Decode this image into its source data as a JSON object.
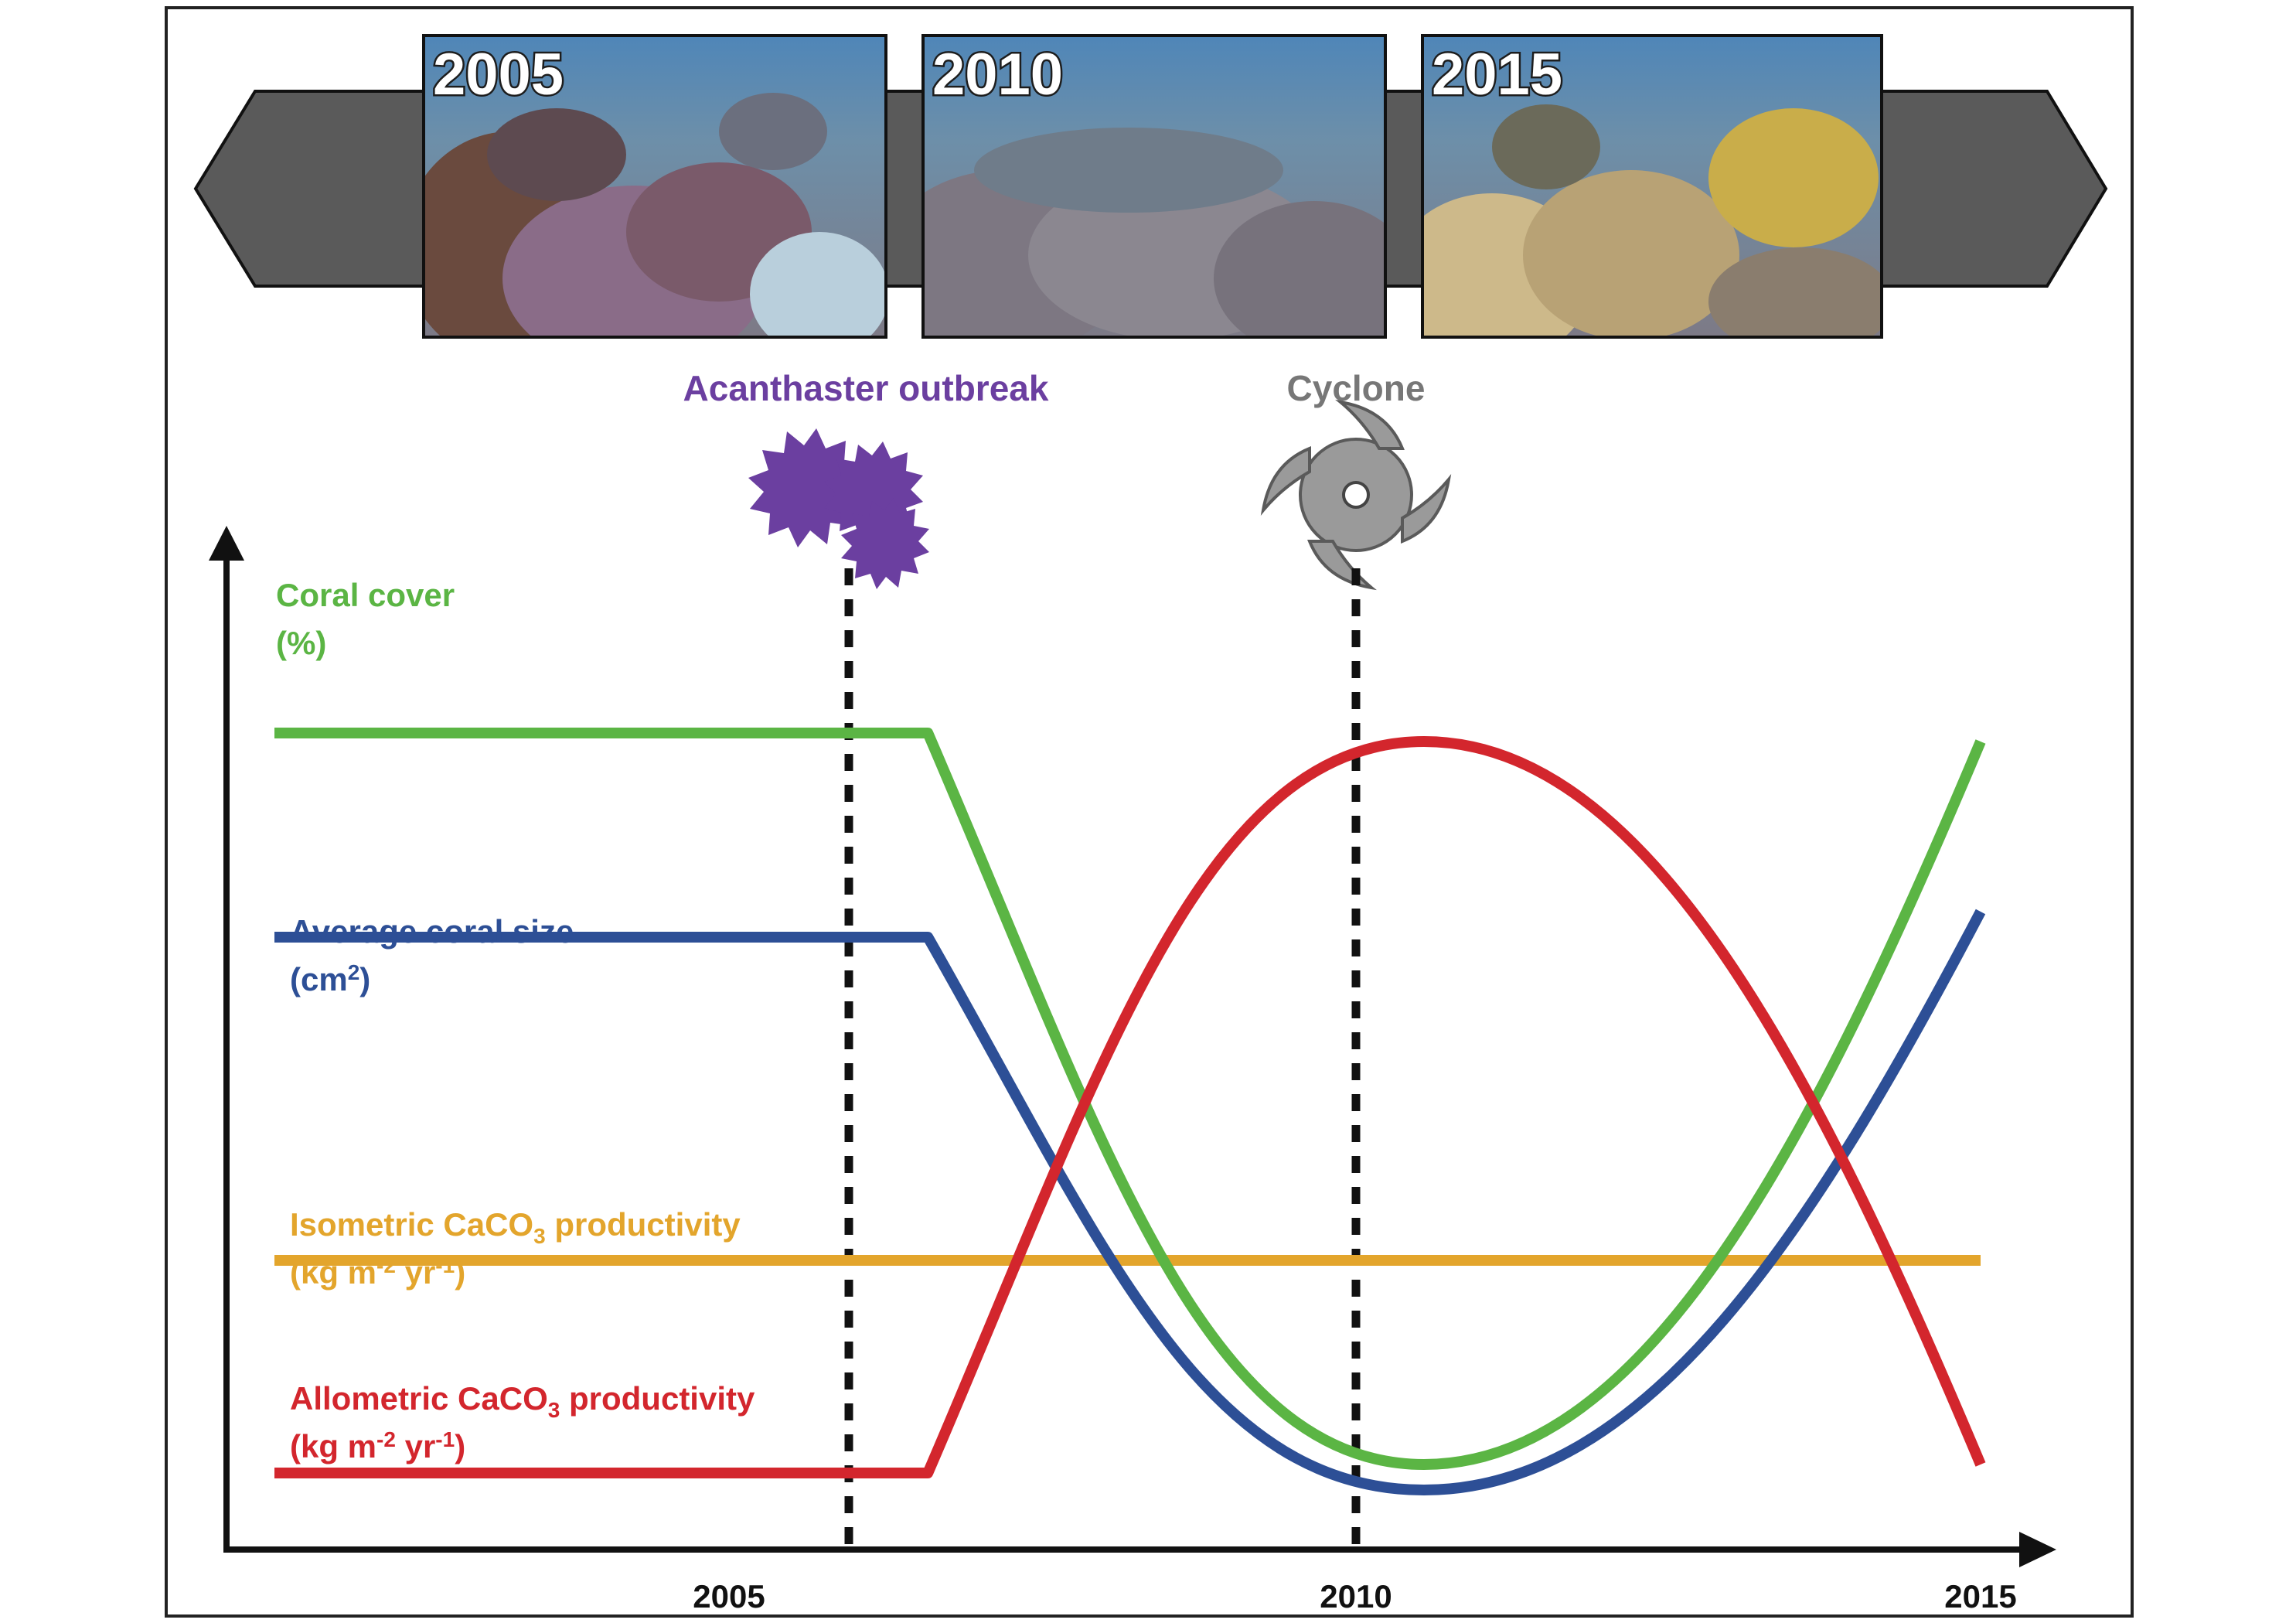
{
  "banner": {
    "photos": [
      {
        "year": "2005",
        "caption": "coral reef photo 2005"
      },
      {
        "year": "2010",
        "caption": "coral reef photo 2010"
      },
      {
        "year": "2015",
        "caption": "coral reef photo 2015"
      }
    ]
  },
  "events": {
    "outbreak": {
      "label": "Acanthaster outbreak",
      "icon": "starfish-icon",
      "color": "#6b3fa0",
      "year": 2006.3
    },
    "cyclone": {
      "label": "Cyclone",
      "icon": "cyclone-icon",
      "color": "#777777",
      "year": 2010
    }
  },
  "legend": {
    "coral_cover": {
      "name": "Coral cover",
      "unit": "(%)",
      "color": "#5bb544"
    },
    "coral_size": {
      "name": "Average coral size",
      "unit_base": "(cm",
      "unit_sup": "2",
      "unit_end": ")",
      "color": "#2d4f96"
    },
    "iso": {
      "name_pre": "Isometric CaCO",
      "name_sub": "3",
      "name_post": " productivity",
      "unit_pre": "(kg m",
      "unit_sup1": "-2",
      "unit_mid": " yr",
      "unit_sup2": "-1",
      "unit_end": ")",
      "color": "#e3a52c"
    },
    "allo": {
      "name_pre": "Allometric CaCO",
      "name_sub": "3",
      "name_post": " productivity",
      "unit_pre": "(kg m",
      "unit_sup1": "-2",
      "unit_mid": " yr",
      "unit_sup2": "-1",
      "unit_end": ")",
      "color": "#d3262d"
    }
  },
  "chart_data": {
    "type": "line",
    "x_ticks": [
      "2005",
      "2010",
      "2015"
    ],
    "x_range": [
      2000.9,
      2015
    ],
    "y_relative": true,
    "series": [
      {
        "name": "Coral cover",
        "color": "#5bb544",
        "points": [
          [
            2000.9,
            0.92
          ],
          [
            2006.3,
            0.92
          ],
          [
            2010.4,
            0.06
          ],
          [
            2015,
            0.91
          ]
        ]
      },
      {
        "name": "Average coral size",
        "color": "#2d4f96",
        "points": [
          [
            2000.9,
            0.68
          ],
          [
            2006.3,
            0.68
          ],
          [
            2010.4,
            0.03
          ],
          [
            2015,
            0.71
          ]
        ]
      },
      {
        "name": "Isometric CaCO3 productivity",
        "color": "#e3a52c",
        "points": [
          [
            2000.9,
            0.3
          ],
          [
            2015,
            0.3
          ]
        ]
      },
      {
        "name": "Allometric CaCO3 productivity",
        "color": "#d3262d",
        "points": [
          [
            2000.9,
            0.05
          ],
          [
            2006.3,
            0.05
          ],
          [
            2010.4,
            0.91
          ],
          [
            2015,
            0.06
          ]
        ]
      }
    ]
  }
}
